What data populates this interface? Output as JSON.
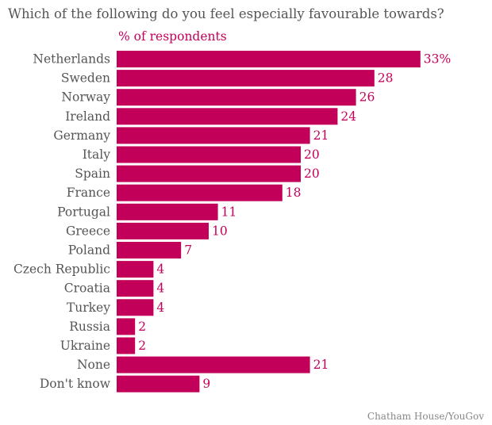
{
  "title": "Which of the following do you feel especially favourable towards?",
  "subtitle": "% of respondents",
  "source": "Chatham House/YouGov",
  "colors": {
    "bar": "#c2005a",
    "label": "#555555",
    "value": "#c2005a"
  },
  "chart_data": {
    "type": "bar",
    "orientation": "horizontal",
    "title": "Which of the following do you feel especially favourable towards?",
    "subtitle": "% of respondents",
    "categories": [
      "Netherlands",
      "Sweden",
      "Norway",
      "Ireland",
      "Germany",
      "Italy",
      "Spain",
      "France",
      "Portugal",
      "Greece",
      "Poland",
      "Czech Republic",
      "Croatia",
      "Turkey",
      "Russia",
      "Ukraine",
      "None",
      "Don't know"
    ],
    "values": [
      33,
      28,
      26,
      24,
      21,
      20,
      20,
      18,
      11,
      10,
      7,
      4,
      4,
      4,
      2,
      2,
      21,
      9
    ],
    "value_labels": [
      "33%",
      "28",
      "26",
      "24",
      "21",
      "20",
      "20",
      "18",
      "11",
      "10",
      "7",
      "4",
      "4",
      "4",
      "2",
      "2",
      "21",
      "9"
    ],
    "xlim": [
      0,
      33
    ],
    "grid": false,
    "legend": "none"
  }
}
